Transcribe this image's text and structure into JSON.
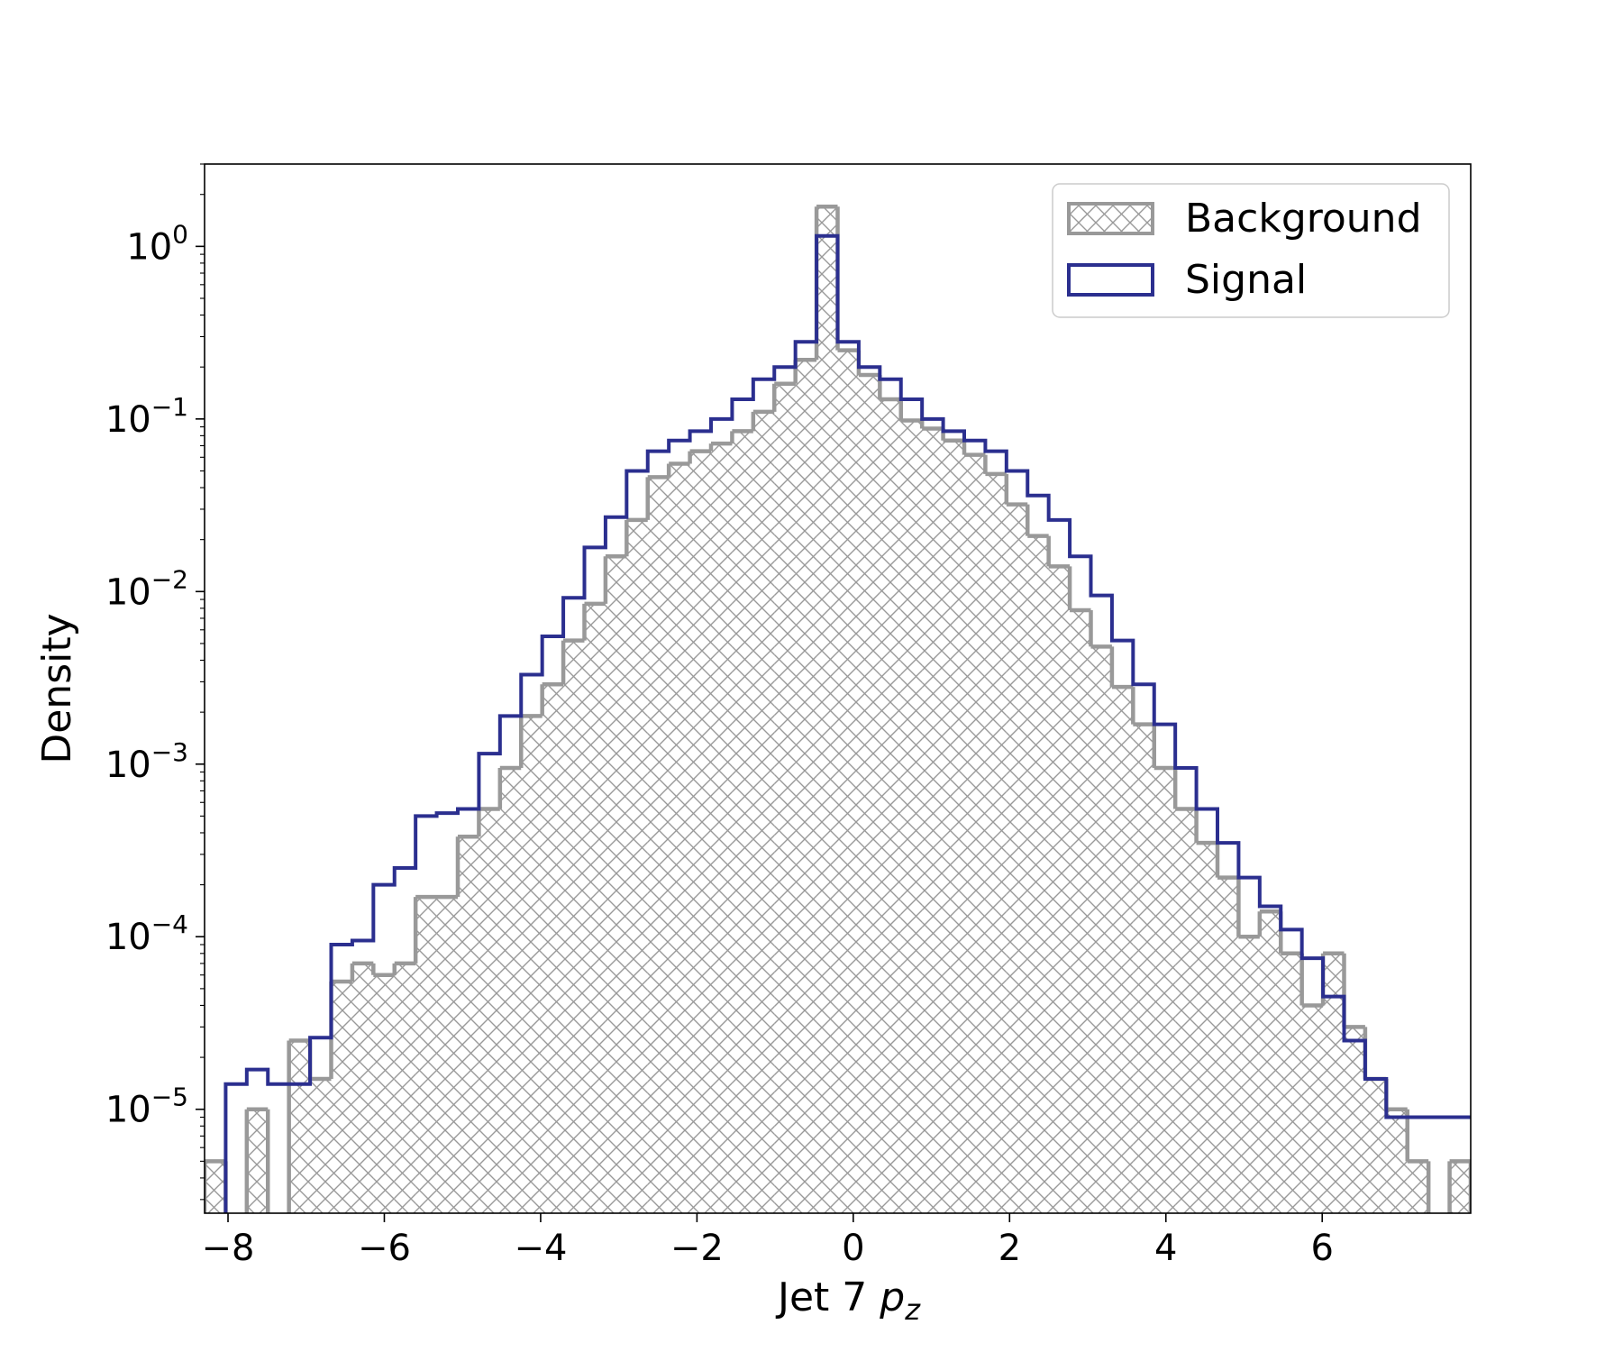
{
  "chart_data": {
    "type": "histogram",
    "xlabel": "Jet 7",
    "xlabel_math": "p",
    "xlabel_sub": "z",
    "ylabel": "Density",
    "yscale": "log",
    "xlim": [
      -8.3,
      7.9
    ],
    "ylim": [
      2.5e-06,
      3.0
    ],
    "xticks": [
      -8,
      -6,
      -4,
      -2,
      0,
      2,
      4,
      6
    ],
    "xtick_labels": [
      "−8",
      "−6",
      "−4",
      "−2",
      "0",
      "2",
      "4",
      "6"
    ],
    "yticks": [
      1,
      0.1,
      0.01,
      0.001,
      0.0001,
      1e-05
    ],
    "ytick_labels": [
      {
        "base": "10",
        "exp": "0"
      },
      {
        "base": "10",
        "exp": "−1"
      },
      {
        "base": "10",
        "exp": "−2"
      },
      {
        "base": "10",
        "exp": "−3"
      },
      {
        "base": "10",
        "exp": "−4"
      },
      {
        "base": "10",
        "exp": "−5"
      }
    ],
    "bin_edges": [
      -8.3,
      -8.03,
      -7.76,
      -7.49,
      -7.22,
      -6.95,
      -6.68,
      -6.41,
      -6.14,
      -5.87,
      -5.6,
      -5.33,
      -5.06,
      -4.79,
      -4.52,
      -4.25,
      -3.98,
      -3.71,
      -3.44,
      -3.17,
      -2.9,
      -2.63,
      -2.36,
      -2.09,
      -1.82,
      -1.55,
      -1.28,
      -1.01,
      -0.74,
      -0.47,
      -0.2,
      0.07,
      0.34,
      0.61,
      0.88,
      1.15,
      1.42,
      1.69,
      1.96,
      2.23,
      2.5,
      2.77,
      3.04,
      3.31,
      3.58,
      3.85,
      4.12,
      4.39,
      4.66,
      4.93,
      5.2,
      5.47,
      5.74,
      6.01,
      6.28,
      6.55,
      6.82,
      7.09,
      7.36,
      7.63,
      7.9
    ],
    "series": [
      {
        "name": "Background",
        "style": "hatched",
        "color": "#999999",
        "values": [
          5e-06,
          0,
          1e-05,
          0,
          2.5e-05,
          1.5e-05,
          5.5e-05,
          7e-05,
          6e-05,
          7e-05,
          0.00017,
          0.00017,
          0.00038,
          0.00055,
          0.00095,
          0.0019,
          0.0029,
          0.0052,
          0.0085,
          0.016,
          0.026,
          0.046,
          0.055,
          0.065,
          0.072,
          0.085,
          0.11,
          0.16,
          0.22,
          1.7,
          0.25,
          0.18,
          0.13,
          0.098,
          0.088,
          0.075,
          0.062,
          0.048,
          0.032,
          0.021,
          0.014,
          0.0078,
          0.0048,
          0.0028,
          0.0017,
          0.00095,
          0.00055,
          0.00035,
          0.00022,
          0.0001,
          0.00014,
          8e-05,
          4e-05,
          8e-05,
          3e-05,
          1.5e-05,
          1e-05,
          5e-06,
          0,
          5e-06
        ]
      },
      {
        "name": "Signal",
        "style": "step",
        "color": "#2b2f8f",
        "values": [
          0,
          1.4e-05,
          1.7e-05,
          1.4e-05,
          1.4e-05,
          2.6e-05,
          9e-05,
          9.5e-05,
          0.0002,
          0.00025,
          0.0005,
          0.00052,
          0.00055,
          0.00115,
          0.0019,
          0.0033,
          0.0055,
          0.0092,
          0.018,
          0.027,
          0.05,
          0.065,
          0.075,
          0.085,
          0.1,
          0.13,
          0.17,
          0.2,
          0.28,
          1.15,
          0.28,
          0.2,
          0.17,
          0.13,
          0.1,
          0.085,
          0.075,
          0.065,
          0.05,
          0.036,
          0.026,
          0.016,
          0.0095,
          0.0052,
          0.0029,
          0.0017,
          0.00095,
          0.00055,
          0.00035,
          0.00022,
          0.00015,
          0.00011,
          7.5e-05,
          4.5e-05,
          2.5e-05,
          1.5e-05,
          9e-06,
          9e-06,
          9e-06,
          9e-06
        ]
      }
    ],
    "legend": {
      "placement": "top-right",
      "entries": [
        "Background",
        "Signal"
      ]
    }
  }
}
